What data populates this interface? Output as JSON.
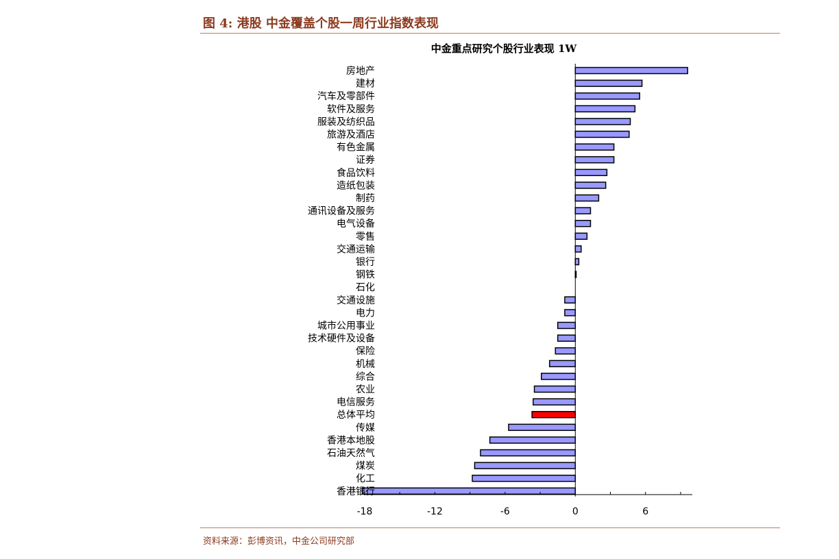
{
  "figure": {
    "title": "图 4:  港股  中金覆盖个股一周行业指数表现",
    "source": "资料来源：彭博资讯，中金公司研究部"
  },
  "colors": {
    "bar": "#9999ff",
    "highlight": "#ff0000",
    "accent": "#8b3a1e"
  },
  "chart_data": {
    "type": "bar",
    "orientation": "horizontal",
    "title": "中金重点研究个股行业表现 1W",
    "xlabel": "",
    "ylabel": "",
    "xlim": [
      -18,
      10
    ],
    "xticks": [
      -18,
      -12,
      -6,
      0,
      6
    ],
    "grid": false,
    "legend": "none",
    "categories": [
      "房地产",
      "建材",
      "汽车及零部件",
      "软件及服务",
      "服装及纺织品",
      "旅游及酒店",
      "有色金属",
      "证券",
      "食品饮料",
      "造纸包装",
      "制药",
      "通讯设备及服务",
      "电气设备",
      "零售",
      "交通运输",
      "银行",
      "钢铁",
      "石化",
      "交通设施",
      "电力",
      "城市公用事业",
      "技术硬件及设备",
      "保险",
      "机械",
      "综合",
      "农业",
      "电信服务",
      "总体平均",
      "传媒",
      "香港本地股",
      "石油天然气",
      "煤炭",
      "化工",
      "香港银行"
    ],
    "values": [
      9.6,
      5.7,
      5.5,
      5.1,
      4.7,
      4.6,
      3.3,
      3.3,
      2.7,
      2.6,
      2.0,
      1.3,
      1.3,
      1.0,
      0.5,
      0.3,
      0.05,
      0.0,
      -0.9,
      -0.9,
      -1.5,
      -1.5,
      -1.7,
      -2.2,
      -2.9,
      -3.5,
      -3.6,
      -3.7,
      -5.7,
      -7.3,
      -8.1,
      -8.6,
      -8.8,
      -18.2
    ],
    "highlight_category": "总体平均"
  }
}
